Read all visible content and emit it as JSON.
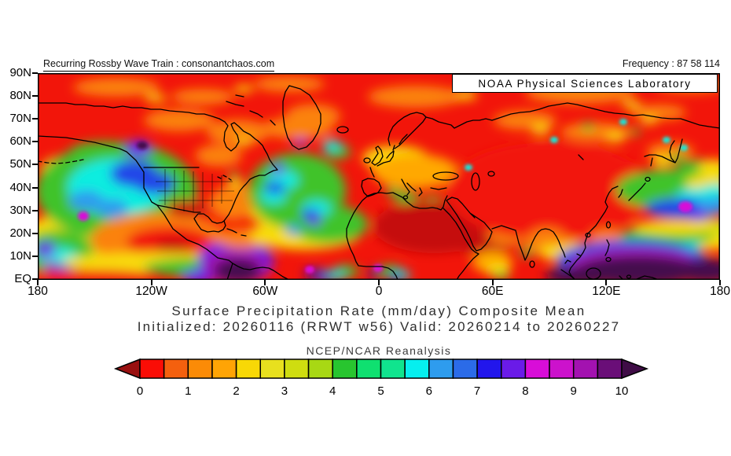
{
  "header": {
    "left_note": "Recurring Rossby Wave Train : consonantchaos.com",
    "frequency_note": "Frequency : 87 58 114"
  },
  "credit_box": {
    "label": "NOAA Physical Sciences Laboratory"
  },
  "titles": {
    "line1": "Surface Precipitation Rate (mm/day) Composite Mean",
    "line2": "Initialized: 20260116 (RRWT w56) Valid: 20260214 to 20260227",
    "source": "NCEP/NCAR Reanalysis"
  },
  "axes": {
    "lat_labels": [
      "90N",
      "80N",
      "70N",
      "60N",
      "50N",
      "40N",
      "30N",
      "20N",
      "10N",
      "EQ"
    ],
    "lon_labels": [
      "180",
      "120W",
      "60W",
      "0",
      "60E",
      "120E",
      "180"
    ]
  },
  "colorbar": {
    "tick_labels": [
      "0",
      "1",
      "2",
      "3",
      "4",
      "5",
      "6",
      "7",
      "8",
      "9",
      "10"
    ],
    "cell_colors": [
      "#FA0D06",
      "#F4600E",
      "#FB8B07",
      "#FFA405",
      "#F8D806",
      "#E8E01E",
      "#CFDD10",
      "#A8D814",
      "#28C52F",
      "#0FE070",
      "#10E48E",
      "#06EFEF",
      "#2E9CEE",
      "#2B6BE8",
      "#2216EC",
      "#6A1BE8",
      "#D80DD8",
      "#CC12CC",
      "#A312B0",
      "#6A0E78"
    ],
    "under_arrow_color": "#991010",
    "over_arrow_color": "#3F0C46"
  },
  "chart_data": {
    "type": "heatmap",
    "title": "Surface Precipitation Rate (mm/day) Composite Mean",
    "subtitle": "Initialized: 20260116 (RRWT w56) Valid: 20260214 to 20260227",
    "source": "NCEP/NCAR Reanalysis",
    "variable": "Surface Precipitation Rate",
    "units": "mm/day",
    "statistic": "Composite Mean",
    "composite_frequency": "87 58 114",
    "projection": "cylindrical equidistant, world map",
    "x_axis": {
      "label": "longitude",
      "tick_labels": [
        "180",
        "120W",
        "60W",
        "0",
        "60E",
        "120E",
        "180"
      ],
      "range_deg": [
        -180,
        180
      ]
    },
    "y_axis": {
      "label": "latitude",
      "tick_labels": [
        "90N",
        "80N",
        "70N",
        "60N",
        "50N",
        "40N",
        "30N",
        "20N",
        "10N",
        "EQ"
      ],
      "range_deg": [
        0,
        90
      ]
    },
    "color_scale": {
      "tick_values": [
        0,
        1,
        2,
        3,
        4,
        5,
        6,
        7,
        8,
        9,
        10
      ],
      "n_cells": 20,
      "cell_width_mm_per_day": 0.5,
      "cell_colors": [
        "#FA0D06",
        "#F4600E",
        "#FB8B07",
        "#FFA405",
        "#F8D806",
        "#E8E01E",
        "#CFDD10",
        "#A8D814",
        "#28C52F",
        "#0FE070",
        "#10E48E",
        "#06EFEF",
        "#2E9CEE",
        "#2B6BE8",
        "#2216EC",
        "#6A1BE8",
        "#D80DD8",
        "#CC12CC",
        "#A312B0",
        "#6A0E78"
      ],
      "under_color": "#991010",
      "over_color": "#3F0C46",
      "legend_position": "bottom"
    },
    "notable_features": [
      "Dry (0-1 mm/day, red) across the Arctic 70-90N, Canada, US interior, Greenland, Middle East, Central Asia and China",
      "Darkest red (<0.5 mm/day) over the Sahara and North Africa around 15-30N, 10W-40E",
      "Wet NE Pacific storm track (3-7 mm/day green/cyan/blue with >7 blue cores) around 30-55N, 180-130W, purple spot at British Columbia coast",
      "Dry subtropical NE Pacific (red/orange 0-2 mm/day) around 10-25N, 155-125W",
      "Very wet ITCZ core (>8 mm/day purple) near Panama/Colombia 0-10N, 75-85W extending to the bottom edge",
      "Very wet Maritime Continent / western Pacific (>8-10 mm/day magenta to dark purple) 0-15N, 60E-180",
      "North Atlantic moderate rain (3-7 mm/day green with blue/purple spots) 20-60N, 60W-10W",
      "NW Pacific Kuroshio band: green/yellow band NE of Japan with blue (7-8) band and magenta (>8) spot near 30N 160E",
      "Equatorial African coast and NE Brazil: small cyan/blue/purple wet spots near the equator"
    ],
    "grid": false
  }
}
